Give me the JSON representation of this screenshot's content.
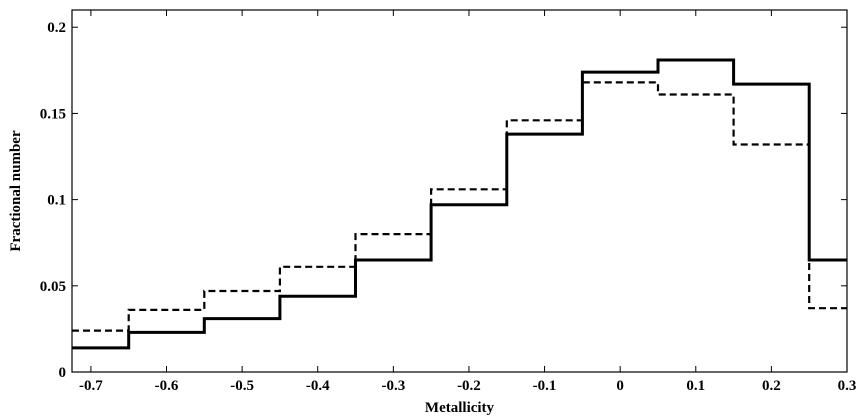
{
  "chart_data": {
    "type": "line",
    "step": true,
    "xlabel": "Metallicity",
    "ylabel": "Fractional number",
    "xlim": [
      -0.725,
      0.3
    ],
    "ylim": [
      0,
      0.21
    ],
    "xticks": [
      -0.7,
      -0.6,
      -0.5,
      -0.4,
      -0.3,
      -0.2,
      -0.1,
      0,
      0.1,
      0.2,
      0.3
    ],
    "xtick_labels": [
      "-0.7",
      "-0.6",
      "-0.5",
      "-0.4",
      "-0.3",
      "-0.2",
      "-0.1",
      "0",
      "0.1",
      "0.2",
      "0.3"
    ],
    "yticks": [
      0,
      0.05,
      0.1,
      0.15,
      0.2
    ],
    "ytick_labels": [
      "0",
      "0.05",
      "0.1",
      "0.15",
      "0.2"
    ],
    "bin_edges": [
      -0.725,
      -0.65,
      -0.55,
      -0.45,
      -0.35,
      -0.25,
      -0.15,
      -0.05,
      0.05,
      0.15,
      0.25,
      0.3
    ],
    "series": [
      {
        "style": "solid",
        "color": "#000000",
        "values": [
          0.014,
          0.023,
          0.031,
          0.044,
          0.065,
          0.097,
          0.138,
          0.174,
          0.181,
          0.167,
          0.065
        ]
      },
      {
        "style": "dashed",
        "color": "#000000",
        "values": [
          0.024,
          0.036,
          0.047,
          0.061,
          0.08,
          0.106,
          0.146,
          0.168,
          0.161,
          0.132,
          0.037
        ]
      }
    ],
    "grid": false,
    "legend": "none"
  }
}
